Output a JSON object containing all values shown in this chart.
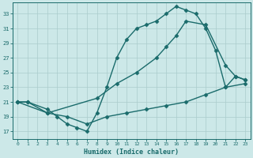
{
  "xlabel": "Humidex (Indice chaleur)",
  "bg_color": "#cce8e8",
  "grid_color": "#aacccc",
  "line_color": "#1a6b6b",
  "xlim": [
    -0.5,
    23.5
  ],
  "ylim": [
    16,
    34.5
  ],
  "xticks": [
    0,
    1,
    2,
    3,
    4,
    5,
    6,
    7,
    8,
    9,
    10,
    11,
    12,
    13,
    14,
    15,
    16,
    17,
    18,
    19,
    20,
    21,
    22,
    23
  ],
  "yticks": [
    17,
    19,
    21,
    23,
    25,
    27,
    29,
    31,
    33
  ],
  "line1_x": [
    0,
    1,
    3,
    4,
    5,
    6,
    7,
    8,
    9,
    10,
    11,
    12,
    13,
    14,
    15,
    16,
    17,
    18,
    19,
    20,
    21,
    22,
    23
  ],
  "line1_y": [
    21,
    21,
    20,
    19,
    18,
    17.5,
    17,
    19.5,
    23,
    27,
    29.5,
    31,
    31.5,
    32,
    33,
    34,
    33.5,
    33,
    31,
    28,
    23,
    24.5,
    24
  ],
  "line2_x": [
    0,
    3,
    8,
    10,
    12,
    14,
    15,
    16,
    17,
    19,
    21,
    22,
    23
  ],
  "line2_y": [
    21,
    19.5,
    21.5,
    23.5,
    25,
    27,
    28.5,
    30,
    32,
    31.5,
    26,
    24.5,
    24
  ],
  "line3_x": [
    0,
    1,
    3,
    5,
    7,
    9,
    11,
    13,
    15,
    17,
    19,
    21,
    23
  ],
  "line3_y": [
    21,
    21,
    19.5,
    19,
    18,
    19,
    19.5,
    20,
    20.5,
    21,
    22,
    23,
    23.5
  ],
  "marker": "D",
  "markersize": 2.5,
  "linewidth": 1.0
}
